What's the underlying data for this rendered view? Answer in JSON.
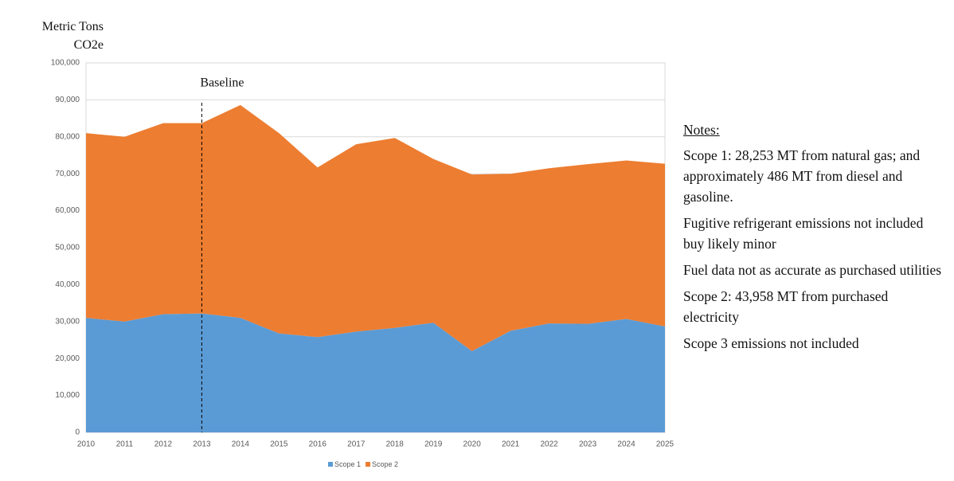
{
  "chart_data": {
    "type": "stacked-area",
    "y_label": "Metric Tons CO2e",
    "categories": [
      "2010",
      "2011",
      "2012",
      "2013",
      "2014",
      "2015",
      "2016",
      "2017",
      "2018",
      "2019",
      "2020",
      "2021",
      "2022",
      "2023",
      "2024",
      "2025"
    ],
    "series": [
      {
        "name": "Scope 1",
        "color": "#5b9bd5",
        "values": [
          31000,
          30000,
          32000,
          32200,
          31000,
          26800,
          25800,
          27300,
          28300,
          29700,
          22000,
          27500,
          29500,
          29400,
          30700,
          28700
        ]
      },
      {
        "name": "Scope 2",
        "color": "#ed7d31",
        "values": [
          50000,
          50000,
          51700,
          51500,
          57600,
          54200,
          45900,
          50700,
          51400,
          44300,
          47800,
          42500,
          42000,
          43200,
          42900,
          44000
        ]
      }
    ],
    "ylim": [
      0,
      100000
    ],
    "yticks": [
      0,
      {
        "value": 10000,
        "label": "10,000"
      },
      {
        "value": 20000,
        "label": "20,000"
      },
      {
        "value": 30000,
        "label": "30,000"
      },
      {
        "value": 40000,
        "label": "40,000"
      },
      {
        "value": 50000,
        "label": "50,000"
      },
      {
        "value": 60000,
        "label": "60,000"
      },
      {
        "value": 70000,
        "label": "70,000"
      },
      {
        "value": 80000,
        "label": "80,000"
      },
      {
        "value": 90000,
        "label": "90,000"
      },
      {
        "value": 100000,
        "label": "100,000"
      }
    ],
    "grid": true,
    "legend": "bottom",
    "annotations": [
      {
        "text": "Baseline",
        "x": "2013"
      }
    ]
  },
  "notes": {
    "title": "Notes:",
    "items": [
      "Scope 1: 28,253 MT from natural gas; and approximately 486 MT from diesel and gasoline.",
      "Fugitive refrigerant emissions not included buy likely minor",
      "Fuel data not as accurate as purchased utilities",
      "Scope 2: 43,958 MT from purchased electricity",
      "Scope 3 emissions not included"
    ]
  }
}
